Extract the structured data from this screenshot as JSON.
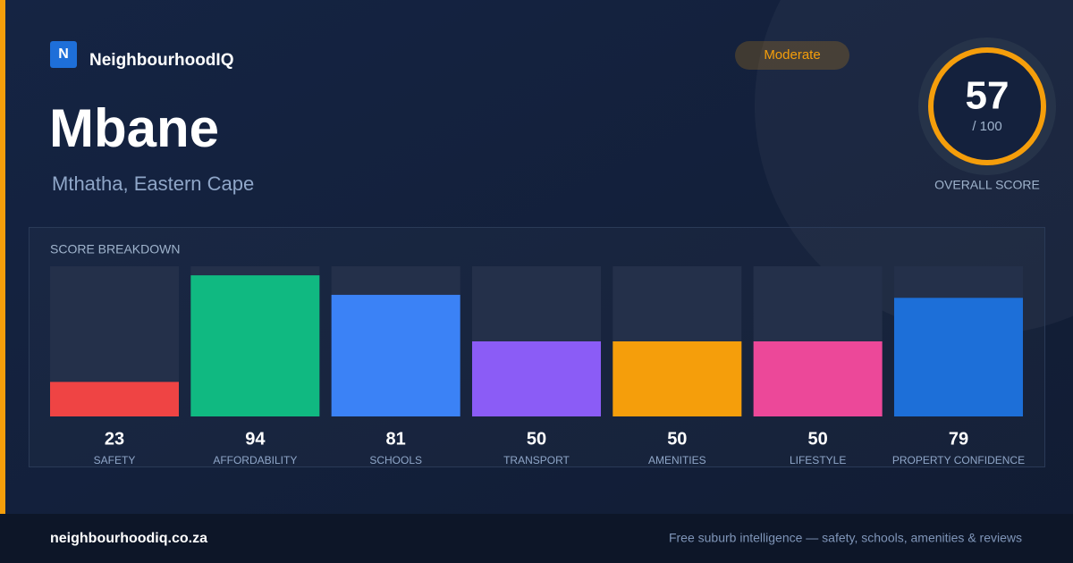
{
  "brand": "NeighbourhoodIQ",
  "logo": "N",
  "title": "Mbane",
  "subtitle": "Mthatha, Eastern Cape",
  "badge": "Moderate",
  "overall": {
    "score": 57,
    "max_label": "/ 100",
    "label": "OVERALL SCORE"
  },
  "chart_data": {
    "type": "bar",
    "title": "SCORE BREAKDOWN",
    "categories": [
      "SAFETY",
      "AFFORDABILITY",
      "SCHOOLS",
      "TRANSPORT",
      "AMENITIES",
      "LIFESTYLE",
      "PROPERTY CONFIDENCE"
    ],
    "values": [
      23,
      94,
      81,
      50,
      50,
      50,
      79
    ],
    "colors": [
      "#ef4444",
      "#10b981",
      "#3b82f6",
      "#8b5cf6",
      "#f59e0b",
      "#ec4899",
      "#1d6fd8"
    ],
    "ylim": [
      0,
      100
    ]
  },
  "footer": {
    "url": "neighbourhoodiq.co.za",
    "tagline": "Free suburb intelligence — safety, schools, amenities & reviews"
  }
}
